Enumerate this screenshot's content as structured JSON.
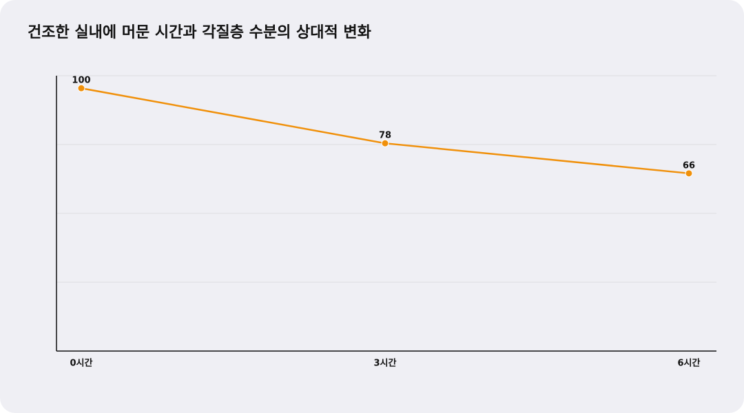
{
  "chart_data": {
    "type": "line",
    "title": "건조한 실내에 머문 시간과 각질층 수분의 상대적 변화",
    "categories": [
      "0시간",
      "3시간",
      "6시간"
    ],
    "series": [
      {
        "name": "각질층 수분",
        "color": "#f0900a",
        "values": [
          100,
          78,
          66
        ]
      }
    ],
    "ylim": [
      -5,
      105
    ],
    "yticks": [
      -5,
      22.5,
      50,
      77.5,
      105
    ],
    "grid": true
  }
}
